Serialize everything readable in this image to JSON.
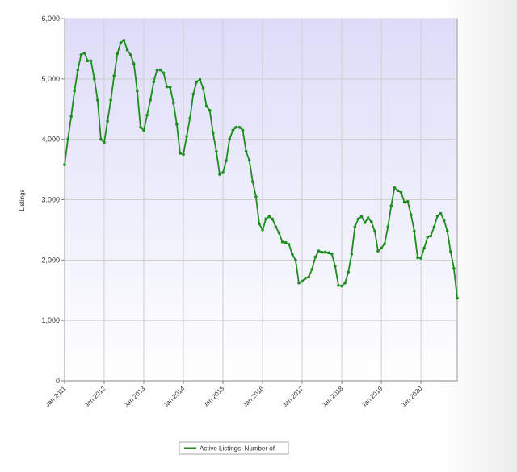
{
  "chart_data": {
    "type": "line",
    "y_label": "Listings",
    "categories": [
      "Jan 2011",
      null,
      null,
      null,
      null,
      null,
      null,
      null,
      null,
      null,
      null,
      null,
      "Jan 2012",
      null,
      null,
      null,
      null,
      null,
      null,
      null,
      null,
      null,
      null,
      null,
      "Jan 2013",
      null,
      null,
      null,
      null,
      null,
      null,
      null,
      null,
      null,
      null,
      null,
      "Jan 2014",
      null,
      null,
      null,
      null,
      null,
      null,
      null,
      null,
      null,
      null,
      null,
      "Jan 2015",
      null,
      null,
      null,
      null,
      null,
      null,
      null,
      null,
      null,
      null,
      null,
      "Jan 2016",
      null,
      null,
      null,
      null,
      null,
      null,
      null,
      null,
      null,
      null,
      null,
      "Jan 2017",
      null,
      null,
      null,
      null,
      null,
      null,
      null,
      null,
      null,
      null,
      null,
      "Jan 2018",
      null,
      null,
      null,
      null,
      null,
      null,
      null,
      null,
      null,
      null,
      null,
      "Jan 2019",
      null,
      null,
      null,
      null,
      null,
      null,
      null,
      null,
      null,
      null,
      null,
      "Jan 2020",
      null,
      null,
      null,
      null,
      null,
      null,
      null,
      null,
      null,
      null,
      null
    ],
    "series": [
      {
        "name": "Active Listings, Number of",
        "color": "#1e8c1e",
        "values": [
          3580,
          4000,
          4380,
          4800,
          5150,
          5400,
          5430,
          5300,
          5300,
          5000,
          4650,
          4000,
          3950,
          4300,
          4650,
          5050,
          5420,
          5600,
          5640,
          5480,
          5400,
          5250,
          4800,
          4200,
          4150,
          4400,
          4650,
          4950,
          5150,
          5150,
          5100,
          4870,
          4860,
          4600,
          4250,
          3770,
          3750,
          4050,
          4350,
          4750,
          4950,
          4990,
          4850,
          4550,
          4480,
          4100,
          3800,
          3420,
          3450,
          3650,
          4000,
          4150,
          4200,
          4200,
          4150,
          3800,
          3650,
          3300,
          3050,
          2600,
          2500,
          2680,
          2720,
          2680,
          2550,
          2450,
          2300,
          2290,
          2260,
          2100,
          2000,
          1620,
          1650,
          1700,
          1720,
          1850,
          2050,
          2150,
          2130,
          2130,
          2120,
          2100,
          1900,
          1580,
          1570,
          1620,
          1800,
          2100,
          2550,
          2680,
          2720,
          2620,
          2700,
          2630,
          2480,
          2150,
          2200,
          2270,
          2550,
          2900,
          3200,
          3150,
          3120,
          2960,
          2970,
          2750,
          2480,
          2040,
          2030,
          2200,
          2380,
          2400,
          2550,
          2730,
          2770,
          2660,
          2480,
          2140,
          1860,
          1370
        ]
      }
    ],
    "ylim": [
      0,
      6000
    ],
    "yticks": [
      0,
      {
        "value": 1000,
        "label": "1,000"
      },
      {
        "value": 2000,
        "label": "2,000"
      },
      {
        "value": 3000,
        "label": "3,000"
      },
      {
        "value": 4000,
        "label": "4,000"
      },
      {
        "value": 5000,
        "label": "5,000"
      },
      {
        "value": 6000,
        "label": "6,000"
      }
    ],
    "grid": true,
    "legend": "bottom"
  }
}
